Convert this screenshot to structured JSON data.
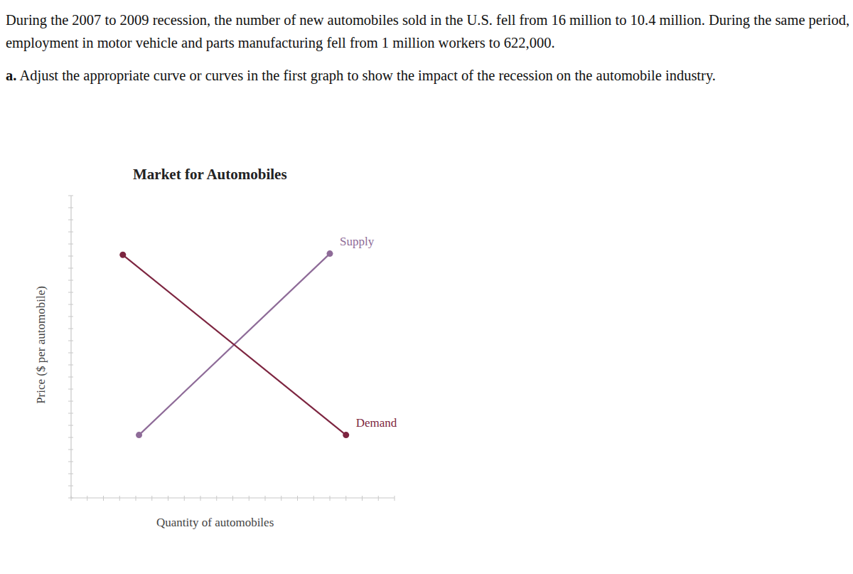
{
  "page": {
    "intro": "During the 2007 to 2009 recession, the number of new automobiles sold in the U.S. fell from 16 million to 10.4 million. During the same period, employment in motor vehicle and parts manufacturing fell from 1 million workers to 622,000.",
    "part_label": "a.",
    "part_text": "Adjust the appropriate curve or curves in the first graph to show the impact of the recession on the automobile industry."
  },
  "chart_data": {
    "type": "line",
    "title": "Market for Automobiles",
    "x_label": "Quantity of automobiles",
    "y_label": "Price ($ per automobile)",
    "xlim": [
      0,
      20
    ],
    "ylim": [
      0,
      25
    ],
    "xticks": [
      0,
      1,
      2,
      3,
      4,
      5,
      6,
      7,
      8,
      9,
      10,
      11,
      12,
      13,
      14,
      15,
      16,
      17,
      18,
      19,
      20
    ],
    "yticks": [
      0,
      1,
      2,
      3,
      4,
      5,
      6,
      7,
      8,
      9,
      10,
      11,
      12,
      13,
      14,
      15,
      16,
      17,
      18,
      19,
      20,
      21,
      22,
      23,
      24,
      25
    ],
    "tick_labels": false,
    "grid": false,
    "series": [
      {
        "name": "Supply",
        "color": "#8e6b98",
        "marker": "circle",
        "x": [
          4.2,
          16.0
        ],
        "values": [
          5.2,
          20.2
        ]
      },
      {
        "name": "Demand",
        "color": "#7d2540",
        "marker": "circle",
        "x": [
          3.2,
          17.0
        ],
        "values": [
          20.1,
          5.2
        ]
      }
    ]
  }
}
